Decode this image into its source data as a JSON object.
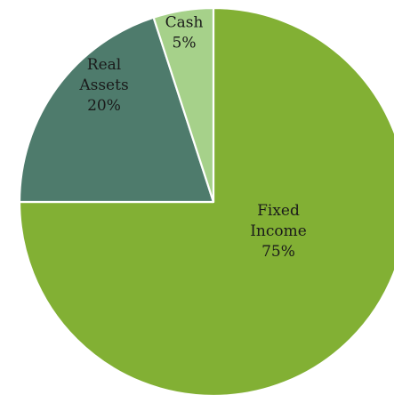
{
  "chart_data": {
    "type": "pie",
    "slices": [
      {
        "label_lines": [
          "Fixed",
          "Income"
        ],
        "value": 75,
        "value_label": "75%",
        "color": "#82b034"
      },
      {
        "label_lines": [
          "Real",
          "Assets"
        ],
        "value": 20,
        "value_label": "20%",
        "color": "#4e7b6c"
      },
      {
        "label_lines": [
          "Cash"
        ],
        "value": 5,
        "value_label": "5%",
        "color": "#a6d18a"
      }
    ],
    "start": "12 o'clock",
    "direction": "clockwise",
    "legend": "none"
  }
}
